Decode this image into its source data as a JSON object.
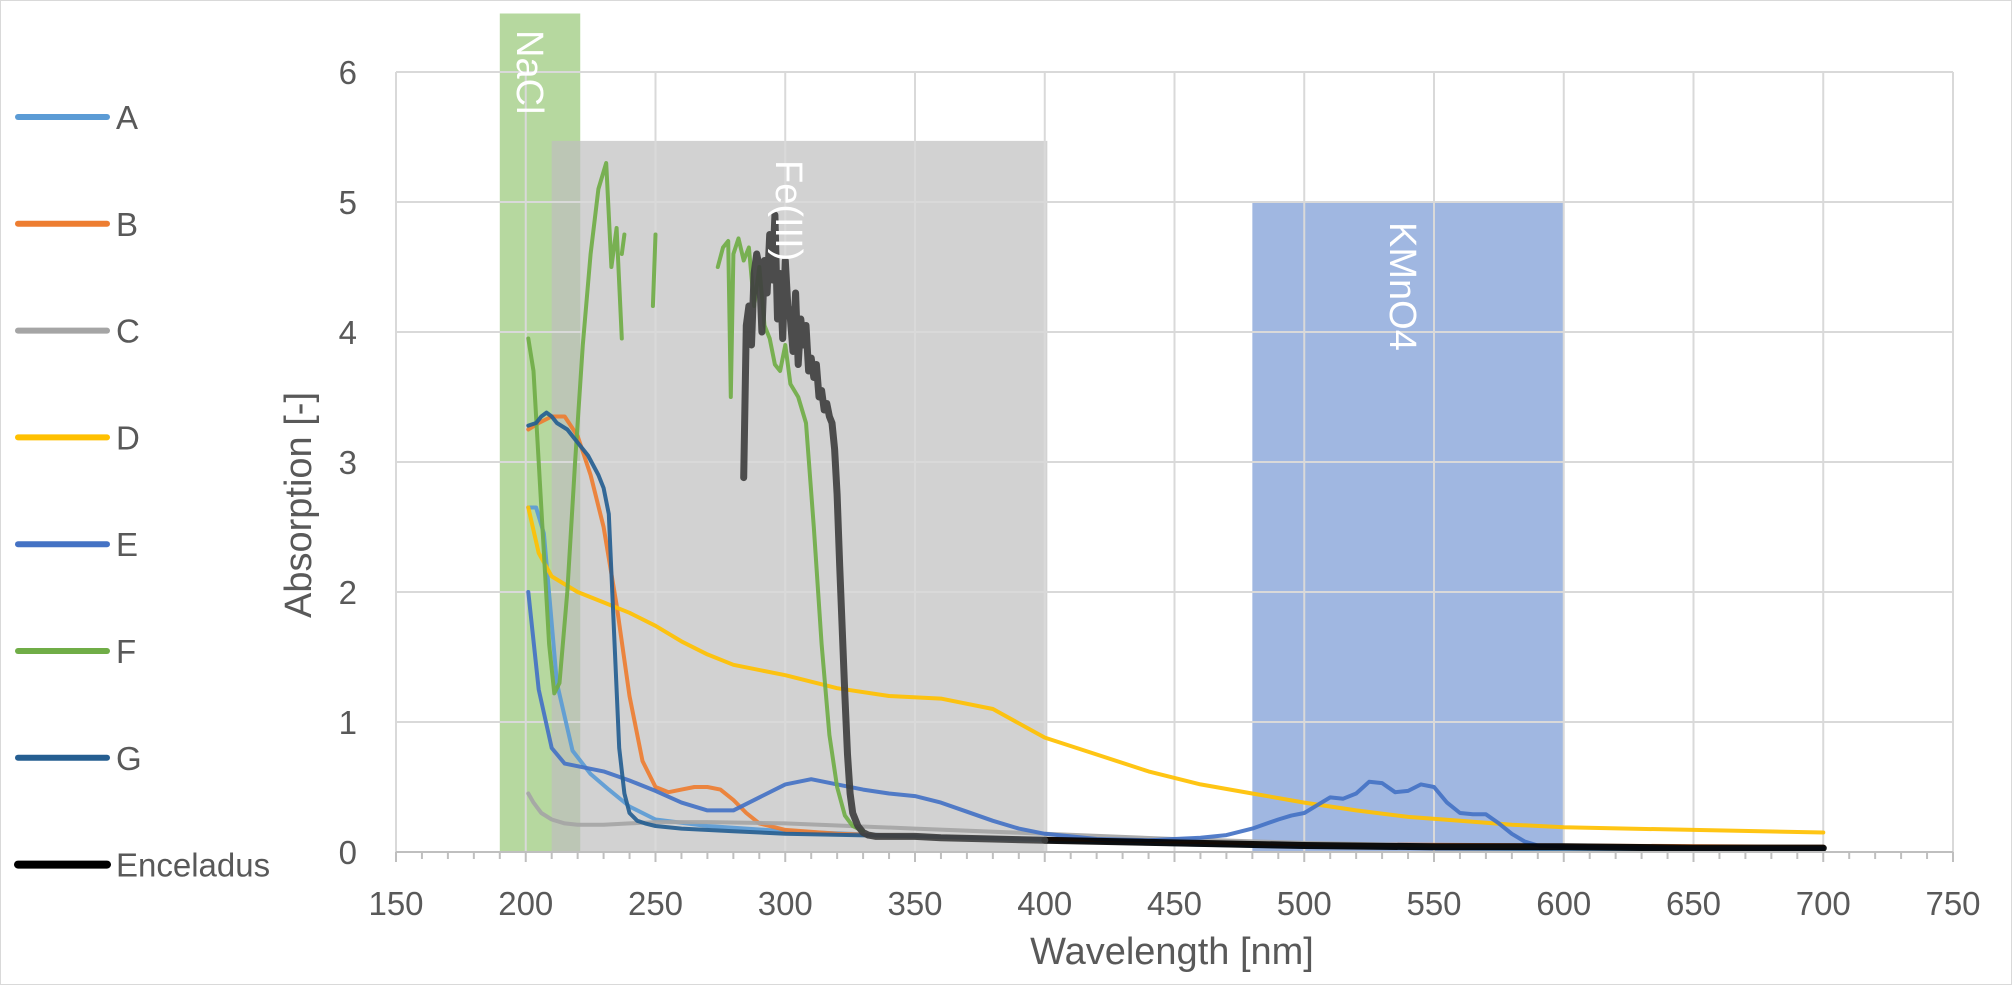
{
  "chart_data": {
    "type": "line",
    "xlabel": "Wavelength [nm]",
    "ylabel": "Absorption [-]",
    "xlim": [
      150,
      750
    ],
    "ylim": [
      0,
      6
    ],
    "x_ticks": [
      "150",
      "200",
      "250",
      "300",
      "350",
      "400",
      "450",
      "500",
      "550",
      "600",
      "650",
      "700",
      "750"
    ],
    "y_ticks": [
      "0",
      "1",
      "2",
      "3",
      "4",
      "5",
      "6"
    ],
    "grid": true,
    "legend_position": "left",
    "bands": [
      {
        "label": "NaCl",
        "x_range": [
          190,
          221
        ],
        "y_top": 6.45,
        "color": "#a9d18e"
      },
      {
        "label": "Fe(III)",
        "x_range": [
          210,
          401
        ],
        "y_top": 5.47,
        "color": "#bfbfbf"
      },
      {
        "label": "KMnO4",
        "x_range": [
          480,
          600
        ],
        "y_top": 5.0,
        "color": "#8faadc"
      }
    ],
    "series": [
      {
        "name": "A",
        "color": "#5b9bd5",
        "width": 4,
        "x": [
          201,
          204,
          207,
          212,
          218,
          225,
          232,
          240,
          250,
          270,
          300,
          350,
          400,
          450,
          500,
          550,
          600,
          650,
          700
        ],
        "y": [
          2.65,
          2.65,
          2.45,
          1.3,
          0.78,
          0.6,
          0.48,
          0.35,
          0.25,
          0.2,
          0.16,
          0.12,
          0.09,
          0.06,
          0.04,
          0.03,
          0.02,
          0.02,
          0.02
        ]
      },
      {
        "name": "B",
        "color": "#ed7d31",
        "width": 4,
        "x": [
          201,
          205,
          210,
          215,
          220,
          225,
          230,
          235,
          240,
          245,
          250,
          255,
          260,
          265,
          270,
          275,
          280,
          285,
          290,
          300,
          320,
          350,
          400,
          500,
          600,
          700
        ],
        "y": [
          3.25,
          3.3,
          3.35,
          3.35,
          3.2,
          2.9,
          2.5,
          1.9,
          1.2,
          0.7,
          0.5,
          0.46,
          0.48,
          0.5,
          0.5,
          0.48,
          0.4,
          0.3,
          0.22,
          0.17,
          0.14,
          0.12,
          0.1,
          0.06,
          0.05,
          0.04
        ]
      },
      {
        "name": "C",
        "color": "#a5a5a5",
        "width": 4,
        "x": [
          201,
          203,
          206,
          210,
          215,
          220,
          230,
          240,
          250,
          270,
          300,
          350,
          400,
          450,
          500,
          550,
          600,
          650,
          700
        ],
        "y": [
          0.45,
          0.38,
          0.3,
          0.25,
          0.22,
          0.21,
          0.21,
          0.22,
          0.23,
          0.23,
          0.22,
          0.18,
          0.14,
          0.1,
          0.07,
          0.05,
          0.04,
          0.03,
          0.03
        ]
      },
      {
        "name": "D",
        "color": "#ffc000",
        "width": 4,
        "x": [
          201,
          205,
          210,
          220,
          230,
          240,
          250,
          260,
          270,
          280,
          300,
          320,
          340,
          360,
          380,
          400,
          420,
          440,
          460,
          480,
          500,
          520,
          540,
          560,
          580,
          600,
          650,
          700
        ],
        "y": [
          2.65,
          2.3,
          2.12,
          2.0,
          1.92,
          1.84,
          1.74,
          1.62,
          1.52,
          1.44,
          1.36,
          1.26,
          1.2,
          1.18,
          1.1,
          0.88,
          0.75,
          0.62,
          0.52,
          0.45,
          0.38,
          0.32,
          0.27,
          0.24,
          0.21,
          0.19,
          0.17,
          0.15
        ]
      },
      {
        "name": "E",
        "color": "#4472c4",
        "width": 4,
        "x": [
          201,
          205,
          210,
          215,
          220,
          230,
          240,
          250,
          260,
          270,
          280,
          290,
          300,
          310,
          320,
          330,
          340,
          350,
          360,
          370,
          380,
          390,
          400,
          420,
          440,
          460,
          470,
          480,
          490,
          495,
          500,
          505,
          510,
          515,
          520,
          525,
          530,
          535,
          540,
          545,
          550,
          555,
          560,
          565,
          570,
          575,
          580,
          585,
          590,
          600,
          650,
          700
        ],
        "y": [
          2.0,
          1.25,
          0.8,
          0.68,
          0.66,
          0.62,
          0.55,
          0.47,
          0.38,
          0.32,
          0.32,
          0.42,
          0.52,
          0.56,
          0.52,
          0.48,
          0.45,
          0.43,
          0.38,
          0.31,
          0.24,
          0.18,
          0.14,
          0.1,
          0.09,
          0.11,
          0.13,
          0.18,
          0.25,
          0.28,
          0.3,
          0.36,
          0.42,
          0.41,
          0.45,
          0.54,
          0.53,
          0.46,
          0.47,
          0.52,
          0.5,
          0.38,
          0.3,
          0.29,
          0.29,
          0.22,
          0.14,
          0.08,
          0.05,
          0.04,
          0.03,
          0.03
        ]
      },
      {
        "name": "F",
        "color": "#70ad47",
        "width": 4,
        "segments": [
          {
            "x": [
              201,
              203,
              205,
              207,
              209,
              211,
              213,
              216,
              219,
              222,
              225,
              228,
              231,
              233,
              235,
              237
            ],
            "y": [
              3.95,
              3.7,
              3.0,
              2.3,
              1.6,
              1.22,
              1.3,
              2.0,
              3.0,
              3.9,
              4.6,
              5.1,
              5.3,
              4.5,
              4.8,
              3.95
            ]
          },
          {
            "x": [
              237,
              238
            ],
            "y": [
              4.6,
              4.75
            ]
          },
          {
            "x": [
              249,
              250
            ],
            "y": [
              4.2,
              4.75
            ]
          },
          {
            "x": [
              274,
              276,
              278,
              279,
              280,
              282,
              284,
              286,
              288,
              290,
              292,
              294,
              296,
              298,
              300,
              302,
              305,
              308,
              311,
              314,
              317,
              320,
              323,
              326,
              330
            ],
            "y": [
              4.5,
              4.65,
              4.7,
              3.5,
              4.6,
              4.72,
              4.55,
              4.65,
              4.2,
              4.5,
              4.05,
              3.95,
              3.75,
              3.7,
              3.9,
              3.6,
              3.5,
              3.3,
              2.5,
              1.6,
              0.9,
              0.5,
              0.28,
              0.2,
              0.16
            ]
          }
        ]
      },
      {
        "name": "G",
        "color": "#255e91",
        "width": 4,
        "x": [
          201,
          204,
          206,
          208,
          210,
          212,
          216,
          220,
          224,
          228,
          230,
          232,
          234,
          236,
          238,
          240,
          243,
          246,
          250,
          260,
          280,
          300,
          350,
          400
        ],
        "y": [
          3.28,
          3.3,
          3.35,
          3.38,
          3.35,
          3.3,
          3.25,
          3.15,
          3.05,
          2.9,
          2.8,
          2.6,
          1.7,
          0.8,
          0.45,
          0.3,
          0.24,
          0.22,
          0.2,
          0.18,
          0.16,
          0.14,
          0.12,
          0.1
        ]
      },
      {
        "name": "Enceladus",
        "color": "#000000",
        "width": 7,
        "x": [
          400,
          450,
          500,
          550,
          600,
          650,
          700
        ],
        "y": [
          0.09,
          0.07,
          0.05,
          0.04,
          0.04,
          0.03,
          0.03
        ]
      },
      {
        "name": "",
        "color": "#404040",
        "width": 7,
        "x": [
          284,
          285,
          286,
          287,
          288,
          289,
          290,
          291,
          292,
          293,
          294,
          295,
          296,
          297,
          298,
          299,
          300,
          301,
          302,
          303,
          304,
          305,
          306,
          307,
          308,
          309,
          310,
          311,
          312,
          313,
          314,
          315,
          316,
          317,
          318,
          319,
          320,
          321,
          322,
          323,
          324,
          325,
          326,
          328,
          330,
          332,
          335,
          338,
          342,
          350,
          360,
          380,
          400
        ],
        "y": [
          2.88,
          4.05,
          4.2,
          3.9,
          4.45,
          4.6,
          4.5,
          4.0,
          4.55,
          4.3,
          4.75,
          4.4,
          4.9,
          4.1,
          4.45,
          3.95,
          4.55,
          4.2,
          4.1,
          3.85,
          4.3,
          3.75,
          4.1,
          3.9,
          4.05,
          3.7,
          3.8,
          3.65,
          3.75,
          3.5,
          3.55,
          3.4,
          3.45,
          3.35,
          3.3,
          3.1,
          2.75,
          2.2,
          1.7,
          1.2,
          0.75,
          0.45,
          0.3,
          0.2,
          0.15,
          0.13,
          0.12,
          0.12,
          0.12,
          0.12,
          0.11,
          0.1,
          0.09
        ]
      }
    ]
  }
}
